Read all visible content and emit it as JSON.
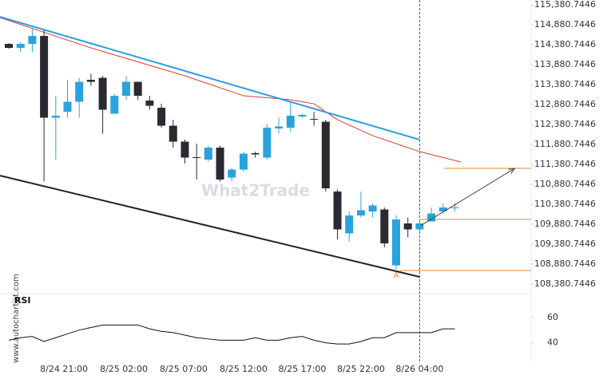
{
  "chart_data": {
    "type": "candlestick",
    "watermark": "What2Trade",
    "side_text": "www.autochartist.com",
    "up_color": "#29a3dd",
    "down_color": "#2a2a30",
    "open": [
      114400,
      114300,
      114400,
      114600,
      112550,
      112700,
      112950,
      113500,
      113550,
      112650,
      113100,
      113450,
      112980,
      112800,
      112350,
      111950,
      111560,
      111500,
      111800,
      111050,
      111250,
      111660,
      111550,
      112280,
      112300,
      112580,
      112520,
      112450,
      110700,
      109650,
      110100,
      110200,
      110250,
      108850,
      109900,
      109750,
      109950,
      110200,
      110300
    ],
    "high": [
      114420,
      114450,
      114800,
      114750,
      113100,
      113500,
      113550,
      113650,
      113600,
      113150,
      113600,
      113450,
      113100,
      112900,
      112500,
      112000,
      111900,
      111850,
      111850,
      111300,
      111700,
      111700,
      112400,
      112550,
      112950,
      112650,
      112700,
      112500,
      110750,
      110200,
      110700,
      110400,
      110300,
      110100,
      110050,
      110000,
      110300,
      110400,
      110400
    ],
    "low": [
      114280,
      114200,
      114200,
      110950,
      111500,
      112550,
      112550,
      113350,
      112150,
      112650,
      113000,
      113000,
      112750,
      112300,
      111800,
      111400,
      111000,
      111450,
      110950,
      110950,
      111200,
      111550,
      111500,
      112150,
      112200,
      112550,
      112350,
      110700,
      109500,
      109450,
      110050,
      110050,
      109300,
      108750,
      109550,
      109700,
      109950,
      110150,
      110200
    ],
    "close": [
      114300,
      114400,
      114600,
      112550,
      112600,
      112950,
      113450,
      113450,
      112750,
      113100,
      113450,
      113100,
      112850,
      112350,
      111950,
      111550,
      111540,
      111800,
      111000,
      111250,
      111650,
      111630,
      112300,
      112330,
      112600,
      112620,
      112500,
      110780,
      109750,
      110100,
      110230,
      110350,
      109400,
      110000,
      109750,
      109900,
      110150,
      110300,
      110300
    ],
    "xlim": [
      -0.75,
      44.5
    ],
    "xticks": [
      {
        "value": 4.7,
        "label": "8/24 21:00"
      },
      {
        "value": 9.8,
        "label": "8/25 02:00"
      },
      {
        "value": 14.9,
        "label": "8/25 07:00"
      },
      {
        "value": 20,
        "label": "8/25 12:00"
      },
      {
        "value": 25,
        "label": "8/25 17:00"
      },
      {
        "value": 30,
        "label": "8/25 22:00"
      },
      {
        "value": 35,
        "label": "8/26 04:00"
      }
    ],
    "ylim": [
      108200.7446,
      115500.7446
    ],
    "yticks": [
      {
        "value": 115380.7446,
        "label": "115,380.7446"
      },
      {
        "value": 114880.7446,
        "label": "114,880.7446"
      },
      {
        "value": 114380.7446,
        "label": "114,380.7446"
      },
      {
        "value": 113880.7446,
        "label": "113,880.7446"
      },
      {
        "value": 113380.7446,
        "label": "113,380.7446"
      },
      {
        "value": 112880.7446,
        "label": "112,880.7446"
      },
      {
        "value": 112380.7446,
        "label": "112,380.7446"
      },
      {
        "value": 111880.7446,
        "label": "111,880.7446"
      },
      {
        "value": 111380.7446,
        "label": "111,380.7446"
      },
      {
        "value": 110880.7446,
        "label": "110,880.7446"
      },
      {
        "value": 110380.7446,
        "label": "110,380.7446"
      },
      {
        "value": 109880.7446,
        "label": "109,880.7446"
      },
      {
        "value": 109380.7446,
        "label": "109,380.7446"
      },
      {
        "value": 108880.7446,
        "label": "108,880.7446"
      },
      {
        "value": 108380.7446,
        "label": "108,380.7446"
      }
    ],
    "lines": [
      {
        "color": "#e03a2f",
        "width": 1,
        "x": [
          -0.75,
          7,
          15,
          20,
          24,
          26,
          28,
          31,
          35,
          38.5
        ],
        "values": [
          115060,
          114300,
          113600,
          113100,
          113000,
          112900,
          112500,
          112100,
          111700,
          111440
        ]
      },
      {
        "color": "#2a9ee0",
        "width": 2,
        "x": [
          -0.75,
          35
        ],
        "values": [
          115080,
          112000
        ]
      },
      {
        "color": "#222222",
        "width": 2,
        "x": [
          -0.75,
          35
        ],
        "values": [
          111100,
          108560
        ]
      }
    ],
    "levels": [
      {
        "color": "#e08a2e",
        "x": [
          37.1,
          44.5
        ],
        "value": 111280
      },
      {
        "color": "#e08a2e",
        "x": [
          35,
          44.5
        ],
        "value": 110000
      },
      {
        "color": "#e08a2e",
        "x": [
          33.3,
          44.5
        ],
        "value": 108720
      }
    ],
    "arrow": {
      "color": "#444444",
      "x": [
        35.1,
        43.1
      ],
      "values": [
        109850,
        111280
      ]
    },
    "annotation": {
      "text": "A",
      "x": 33,
      "value": 108600,
      "color": "#e08a2e"
    },
    "marker_x": 35,
    "rsi": {
      "label": "RSI",
      "color": "#111111",
      "ylim": [
        24,
        77.5
      ],
      "yticks": [
        40,
        60
      ],
      "values": [
        42,
        44,
        45,
        41,
        44,
        47,
        50,
        52,
        54,
        54,
        54,
        54,
        51,
        49,
        48,
        46,
        44,
        43,
        42,
        42,
        42,
        44,
        42,
        42,
        44,
        45,
        42,
        40,
        39,
        39,
        41,
        44,
        44,
        48,
        48,
        48,
        48,
        51,
        51
      ]
    }
  }
}
